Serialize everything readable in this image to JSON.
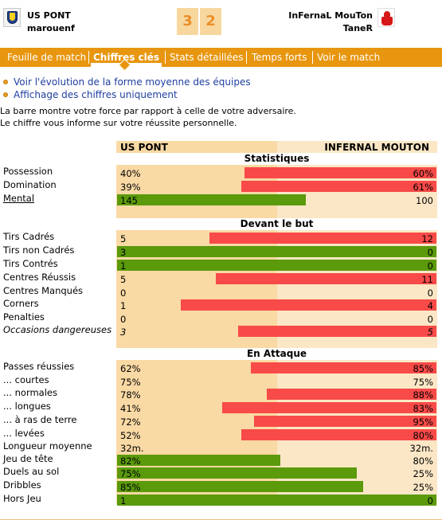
{
  "header": {
    "home_team": "US PONT",
    "home_coach": "marouenf",
    "away_team": "InFernaL MouTon",
    "away_coach": "TaneR",
    "score_home": "3",
    "score_away": "2"
  },
  "tabs": [
    "Feuille de match",
    "Chiffres clés",
    "Stats détaillées",
    "Temps forts",
    "Voir le match"
  ],
  "links": [
    "Voir l'évolution de la forme moyenne des équipes",
    "Affichage des chiffres uniquement"
  ],
  "intro": [
    "La barre montre votre force par rapport à celle de votre adversaire.",
    "Le chiffre vous informe sur votre réussite personnelle."
  ],
  "columns": {
    "home": "US PONT",
    "away": "INFERNAL MOUTON"
  },
  "sections": {
    "stats": "Statistiques",
    "but": "Devant le but",
    "attaque": "En Attaque"
  },
  "colors": {
    "home_bar": "#5a9a0b",
    "away_bar": "#f84a48",
    "tab_bar": "#e8960f",
    "link": "#1f3ea0"
  },
  "stats": [
    {
      "label": "Possession",
      "home": "40%",
      "away": "60%",
      "share": 0.6,
      "winner": "away"
    },
    {
      "label": "Domination",
      "home": "39%",
      "away": "61%",
      "share": 0.61,
      "winner": "away"
    },
    {
      "label": "Mental",
      "home": "145",
      "away": "100",
      "share": 0.59,
      "winner": "home"
    }
  ],
  "but": [
    {
      "label": "Tirs Cadrés",
      "home": "5",
      "away": "12",
      "share": 0.71,
      "winner": "away"
    },
    {
      "label": "Tirs non Cadrés",
      "home": "3",
      "away": "0",
      "share": 1,
      "winner": "home"
    },
    {
      "label": "Tirs Contrés",
      "home": "1",
      "away": "0",
      "share": 1,
      "winner": "home"
    },
    {
      "label": "Centres Réussis",
      "home": "5",
      "away": "11",
      "share": 0.69,
      "winner": "away"
    },
    {
      "label": "Centres Manqués",
      "home": "0",
      "away": "0",
      "share": 0,
      "winner": "none"
    },
    {
      "label": "Corners",
      "home": "1",
      "away": "4",
      "share": 0.8,
      "winner": "away"
    },
    {
      "label": "Penalties",
      "home": "0",
      "away": "0",
      "share": 0,
      "winner": "none"
    },
    {
      "label": "Occasions dangereuses",
      "home": "3",
      "away": "5",
      "share": 0.62,
      "winner": "away"
    }
  ],
  "attaque": [
    {
      "label": "Passes réussies",
      "home": "62%",
      "away": "85%",
      "share": 0.58,
      "winner": "away"
    },
    {
      "label": "... courtes",
      "home": "75%",
      "away": "75%",
      "share": 0,
      "winner": "none"
    },
    {
      "label": "... normales",
      "home": "78%",
      "away": "88%",
      "share": 0.53,
      "winner": "away"
    },
    {
      "label": "... longues",
      "home": "41%",
      "away": "83%",
      "share": 0.67,
      "winner": "away"
    },
    {
      "label": "... à ras de terre",
      "home": "72%",
      "away": "95%",
      "share": 0.57,
      "winner": "away"
    },
    {
      "label": "... levées",
      "home": "52%",
      "away": "80%",
      "share": 0.61,
      "winner": "away"
    },
    {
      "label": "Longueur moyenne",
      "home": "32m.",
      "away": "32m.",
      "share": 0,
      "winner": "none"
    },
    {
      "label": "Jeu de tête",
      "home": "82%",
      "away": "80%",
      "share": 0.51,
      "winner": "home"
    },
    {
      "label": "Duels au sol",
      "home": "75%",
      "away": "25%",
      "share": 0.75,
      "winner": "home"
    },
    {
      "label": "Dribbles",
      "home": "85%",
      "away": "25%",
      "share": 0.77,
      "winner": "home"
    },
    {
      "label": "Hors Jeu",
      "home": "1",
      "away": "0",
      "share": 1,
      "winner": "home"
    }
  ]
}
